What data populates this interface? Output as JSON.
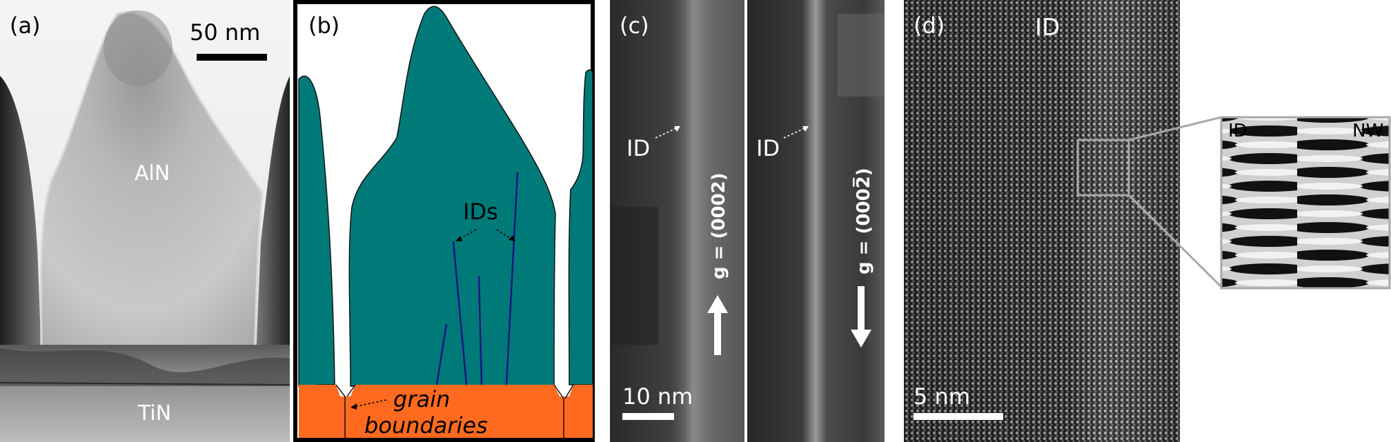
{
  "panels": {
    "a": {
      "letter": "(a)",
      "scale_bar": "50 nm",
      "material_top": "AlN",
      "material_bottom": "TiN"
    },
    "b": {
      "letter": "(b)",
      "defect_label": "IDs",
      "grain_line1": "grain",
      "grain_line2": "boundaries"
    },
    "c": {
      "letter": "(c)",
      "left_marker": "ID",
      "right_marker": "ID",
      "left_vector": "g = (0002)",
      "right_vector": "g = (0002̅)",
      "scale_bar": "10 nm"
    },
    "d": {
      "letter": "(d)",
      "defect_label": "ID",
      "inset_left": "ID",
      "inset_right": "NW",
      "scale_bar": "5 nm"
    }
  },
  "colors": {
    "teal": "#007a78",
    "orange": "#ff6a1f",
    "defect_line": "#15187f"
  }
}
